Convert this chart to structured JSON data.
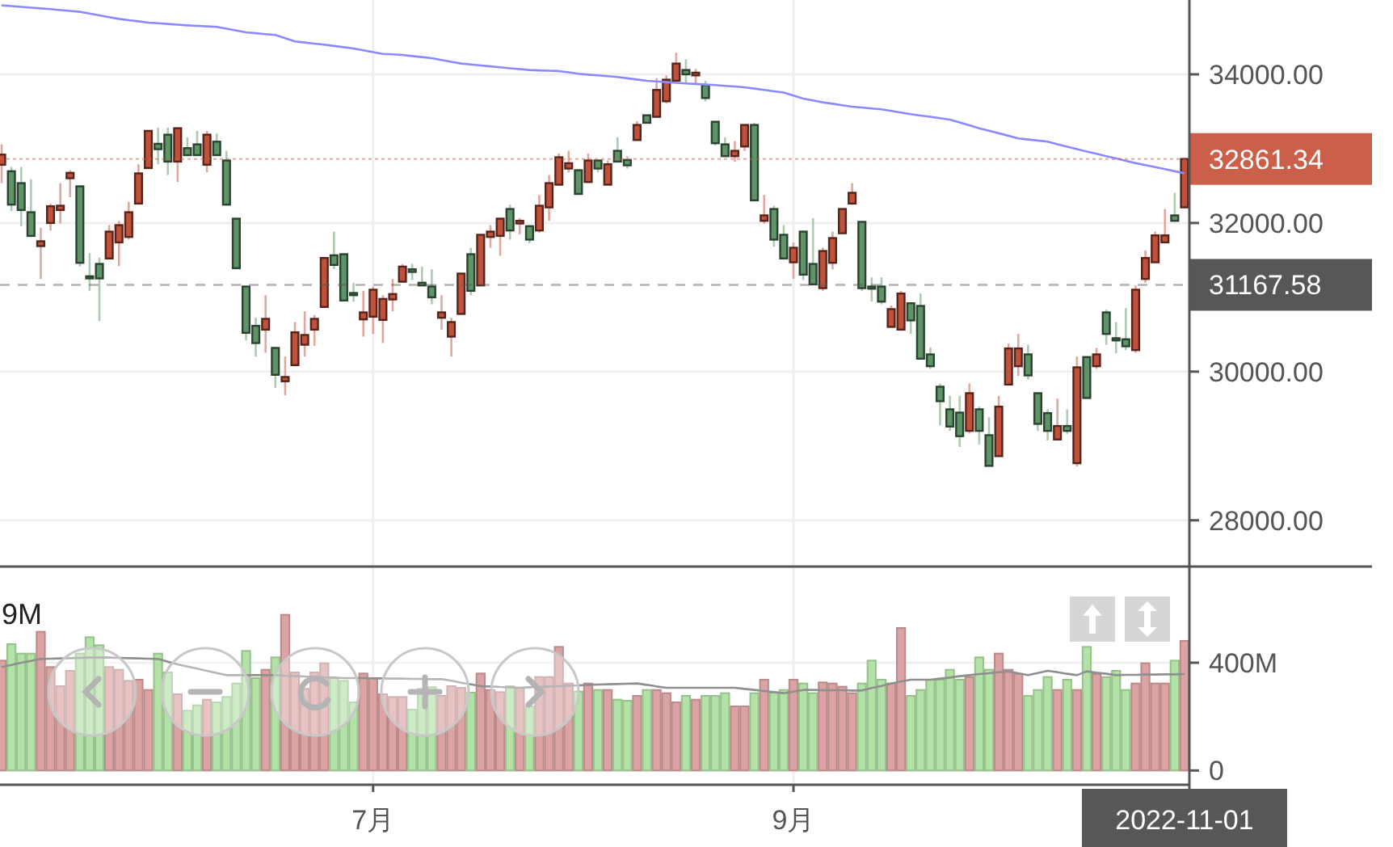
{
  "chart_data": [
    {
      "type": "candlestick",
      "tick_labels": "y",
      "grid": true,
      "categories": [
        null,
        null,
        null,
        null,
        null,
        null,
        null,
        null,
        null,
        null,
        null,
        null,
        null,
        null,
        null,
        null,
        null,
        null,
        null,
        null,
        null,
        null,
        null,
        null,
        null,
        null,
        null,
        null,
        null,
        null,
        null,
        null,
        null,
        null,
        null,
        null,
        null,
        null,
        null,
        null,
        null,
        null,
        null,
        null,
        null,
        null,
        null,
        null,
        null,
        null,
        null,
        null,
        null,
        null,
        null,
        null,
        null,
        null,
        null,
        null,
        null,
        null,
        null,
        null,
        null,
        null,
        null,
        null,
        null,
        null,
        null,
        null,
        null,
        null,
        null,
        null,
        null,
        null,
        null,
        null,
        null,
        null,
        null,
        null,
        null,
        null,
        null,
        null,
        null,
        null,
        null,
        null,
        null,
        null,
        null,
        null,
        null,
        null,
        null,
        null,
        null,
        null,
        null,
        null,
        null,
        null,
        null,
        null,
        null,
        null,
        null,
        null,
        null,
        null,
        null,
        null,
        null,
        null,
        null,
        null,
        null,
        null
      ],
      "ohlc": [
        [
          32783,
          33058,
          32536,
          32920
        ],
        [
          32696,
          32754,
          32160,
          32247
        ],
        [
          32536,
          32754,
          31957,
          32174
        ],
        [
          32145,
          32587,
          31812,
          31826
        ],
        [
          31689,
          31935,
          31247,
          31754
        ],
        [
          32000,
          32261,
          31899,
          32225
        ],
        [
          32174,
          32536,
          31993,
          32232
        ],
        [
          32602,
          32710,
          32348,
          32674
        ],
        [
          32493,
          32493,
          31413,
          31464
        ],
        [
          31283,
          31594,
          31087,
          31254
        ],
        [
          31449,
          31536,
          30681,
          31254
        ],
        [
          31522,
          31971,
          31522,
          31884
        ],
        [
          31739,
          32029,
          31420,
          31971
        ],
        [
          31812,
          32283,
          31776,
          32145
        ],
        [
          32261,
          32790,
          32247,
          32667
        ],
        [
          32739,
          33239,
          32739,
          33239
        ],
        [
          33065,
          33283,
          32790,
          32993
        ],
        [
          33188,
          33283,
          32645,
          32826
        ],
        [
          32826,
          33275,
          32551,
          33275
        ],
        [
          33007,
          33152,
          32899,
          32913
        ],
        [
          33058,
          33239,
          32899,
          32913
        ],
        [
          32783,
          33239,
          32681,
          33188
        ],
        [
          33094,
          33203,
          32899,
          32913
        ],
        [
          32841,
          32971,
          32247,
          32247
        ],
        [
          32058,
          32058,
          31391,
          31391
        ],
        [
          31145,
          31145,
          30420,
          30522
        ],
        [
          30616,
          30725,
          30203,
          30384
        ],
        [
          30565,
          31029,
          30254,
          30710
        ],
        [
          30319,
          30319,
          29783,
          29957
        ],
        [
          29870,
          30203,
          29681,
          29928
        ],
        [
          30087,
          30667,
          30073,
          30529
        ],
        [
          30362,
          30812,
          30203,
          30493
        ],
        [
          30565,
          30761,
          30348,
          30710
        ],
        [
          30870,
          31529,
          30870,
          31529
        ],
        [
          31565,
          31884,
          31377,
          31435
        ],
        [
          31580,
          31580,
          30957,
          30957
        ],
        [
          31058,
          31196,
          30942,
          31029
        ],
        [
          30703,
          31087,
          30471,
          30797
        ],
        [
          30739,
          31145,
          30507,
          31102
        ],
        [
          30696,
          31029,
          30384,
          30978
        ],
        [
          30971,
          31247,
          30812,
          31044
        ],
        [
          31210,
          31449,
          31196,
          31413
        ],
        [
          31377,
          31449,
          31232,
          31341
        ],
        [
          31196,
          31413,
          31160,
          31160
        ],
        [
          31145,
          31377,
          30906,
          31000
        ],
        [
          30725,
          31029,
          30565,
          30797
        ],
        [
          30471,
          30725,
          30203,
          30667
        ],
        [
          30776,
          31319,
          30776,
          31319
        ],
        [
          31580,
          31667,
          31029,
          31087
        ],
        [
          31160,
          31841,
          31160,
          31841
        ],
        [
          31812,
          31971,
          31667,
          31884
        ],
        [
          31826,
          32065,
          31558,
          32058
        ],
        [
          32188,
          32247,
          31776,
          31899
        ],
        [
          31993,
          32065,
          31848,
          32029
        ],
        [
          31957,
          31971,
          31725,
          31776
        ],
        [
          31899,
          32377,
          31870,
          32232
        ],
        [
          32210,
          32645,
          32029,
          32536
        ],
        [
          32515,
          32935,
          32515,
          32884
        ],
        [
          32732,
          32971,
          32681,
          32804
        ],
        [
          32710,
          32710,
          32377,
          32391
        ],
        [
          32551,
          32935,
          32551,
          32841
        ],
        [
          32841,
          32841,
          32681,
          32732
        ],
        [
          32515,
          32841,
          32515,
          32790
        ],
        [
          32971,
          33152,
          32826,
          32826
        ],
        [
          32848,
          32899,
          32732,
          32776
        ],
        [
          33116,
          33370,
          33116,
          33319
        ],
        [
          33449,
          33449,
          33348,
          33348
        ],
        [
          33428,
          33949,
          33428,
          33790
        ],
        [
          33638,
          33986,
          33609,
          33928
        ],
        [
          33913,
          34290,
          33913,
          34145
        ],
        [
          34058,
          34203,
          33877,
          34000
        ],
        [
          33986,
          34073,
          33877,
          34022
        ],
        [
          33855,
          33913,
          33638,
          33681
        ],
        [
          33362,
          33362,
          33044,
          33073
        ],
        [
          33058,
          33152,
          32899,
          32899
        ],
        [
          32899,
          33101,
          32826,
          32971
        ],
        [
          33029,
          33319,
          32971,
          33319
        ],
        [
          33319,
          33348,
          32304,
          32304
        ],
        [
          32029,
          32377,
          31993,
          32102
        ],
        [
          32188,
          32232,
          31681,
          31776
        ],
        [
          31841,
          31971,
          31522,
          31522
        ],
        [
          31471,
          31739,
          31247,
          31667
        ],
        [
          31884,
          31884,
          31232,
          31305
        ],
        [
          31449,
          32065,
          31174,
          31174
        ],
        [
          31123,
          31667,
          31087,
          31623
        ],
        [
          31464,
          31884,
          31377,
          31797
        ],
        [
          31862,
          32188,
          31862,
          32188
        ],
        [
          32261,
          32536,
          32247,
          32406
        ],
        [
          32015,
          32015,
          31087,
          31123
        ],
        [
          31145,
          31268,
          30942,
          31116
        ],
        [
          31145,
          31268,
          30906,
          30942
        ],
        [
          30602,
          30891,
          30602,
          30841
        ],
        [
          30565,
          31087,
          30565,
          31051
        ],
        [
          30920,
          30920,
          30507,
          30689
        ],
        [
          30884,
          31051,
          30174,
          30174
        ],
        [
          30232,
          30326,
          30036,
          30073
        ],
        [
          29797,
          29841,
          29276,
          29602
        ],
        [
          29493,
          29674,
          29203,
          29261
        ],
        [
          29449,
          29674,
          28986,
          29131
        ],
        [
          29203,
          29841,
          29167,
          29710
        ],
        [
          29493,
          29529,
          29022,
          29203
        ],
        [
          29145,
          29384,
          28732,
          28732
        ],
        [
          28863,
          29674,
          28863,
          29529
        ],
        [
          29826,
          30377,
          29826,
          30312
        ],
        [
          30073,
          30507,
          29942,
          30312
        ],
        [
          30232,
          30362,
          29892,
          29949
        ],
        [
          29710,
          29710,
          29203,
          29297
        ],
        [
          29442,
          29493,
          29073,
          29203
        ],
        [
          29087,
          29638,
          29087,
          29268
        ],
        [
          29268,
          29493,
          29160,
          29203
        ],
        [
          28768,
          30203,
          28725,
          30058
        ],
        [
          30196,
          30196,
          29645,
          29645
        ],
        [
          30073,
          30319,
          30036,
          30232
        ],
        [
          30797,
          30834,
          30362,
          30507
        ],
        [
          30450,
          30667,
          30247,
          30420
        ],
        [
          30435,
          30855,
          30290,
          30341
        ],
        [
          30290,
          31160,
          30254,
          31102
        ],
        [
          31247,
          31631,
          31196,
          31529
        ],
        [
          31471,
          31884,
          31471,
          31833
        ],
        [
          31739,
          32188,
          31739,
          31833
        ],
        [
          32102,
          32406,
          32029,
          32029
        ],
        [
          32210,
          32877,
          32210,
          32861.34
        ]
      ],
      "colors": [
        "#c0513b",
        "#5e9467",
        "#5e9467",
        "#5e9467",
        "#c0513b",
        "#c0513b",
        "#c0513b",
        "#c0513b",
        "#5e9467",
        "#5e9467",
        "#5e9467",
        "#c0513b",
        "#c0513b",
        "#c0513b",
        "#c0513b",
        "#c0513b",
        "#5e9467",
        "#5e9467",
        "#c0513b",
        "#5e9467",
        "#5e9467",
        "#c0513b",
        "#5e9467",
        "#5e9467",
        "#5e9467",
        "#5e9467",
        "#5e9467",
        "#c0513b",
        "#5e9467",
        "#c0513b",
        "#c0513b",
        "#c0513b",
        "#c0513b",
        "#c0513b",
        "#5e9467",
        "#5e9467",
        "#5e9467",
        "#c0513b",
        "#c0513b",
        "#c0513b",
        "#c0513b",
        "#c0513b",
        "#5e9467",
        "#5e9467",
        "#5e9467",
        "#c0513b",
        "#c0513b",
        "#c0513b",
        "#5e9467",
        "#c0513b",
        "#c0513b",
        "#c0513b",
        "#5e9467",
        "#c0513b",
        "#5e9467",
        "#c0513b",
        "#c0513b",
        "#c0513b",
        "#c0513b",
        "#5e9467",
        "#c0513b",
        "#5e9467",
        "#c0513b",
        "#5e9467",
        "#5e9467",
        "#c0513b",
        "#5e9467",
        "#c0513b",
        "#c0513b",
        "#c0513b",
        "#5e9467",
        "#c0513b",
        "#5e9467",
        "#5e9467",
        "#5e9467",
        "#c0513b",
        "#c0513b",
        "#5e9467",
        "#c0513b",
        "#5e9467",
        "#5e9467",
        "#c0513b",
        "#5e9467",
        "#5e9467",
        "#c0513b",
        "#c0513b",
        "#c0513b",
        "#c0513b",
        "#5e9467",
        "#5e9467",
        "#5e9467",
        "#c0513b",
        "#c0513b",
        "#5e9467",
        "#5e9467",
        "#5e9467",
        "#5e9467",
        "#5e9467",
        "#5e9467",
        "#c0513b",
        "#5e9467",
        "#5e9467",
        "#c0513b",
        "#c0513b",
        "#c0513b",
        "#5e9467",
        "#5e9467",
        "#5e9467",
        "#c0513b",
        "#5e9467",
        "#c0513b",
        "#5e9467",
        "#c0513b",
        "#5e9467",
        "#5e9467",
        "#5e9467",
        "#c0513b",
        "#c0513b",
        "#c0513b",
        "#c0513b",
        "#5e9467",
        "#c0513b"
      ],
      "series": [
        {
          "type": "line",
          "color": "#8a8aff",
          "values": [
            34928,
            34918,
            34908,
            34897,
            34887,
            34877,
            34865,
            34853,
            34841,
            34817,
            34794,
            34770,
            34746,
            34729,
            34713,
            34696,
            34687,
            34678,
            34668,
            34659,
            34652,
            34645,
            34638,
            34614,
            34589,
            34565,
            34553,
            34541,
            34529,
            34486,
            34442,
            34428,
            34413,
            34399,
            34382,
            34365,
            34348,
            34324,
            34299,
            34275,
            34268,
            34261,
            34246,
            34232,
            34217,
            34193,
            34169,
            34145,
            34132,
            34120,
            34107,
            34094,
            34082,
            34070,
            34058,
            34053,
            34049,
            34044,
            34026,
            34007,
            33996,
            33986,
            33975,
            33964,
            33947,
            33930,
            33913,
            33904,
            33895,
            33886,
            33877,
            33870,
            33862,
            33855,
            33845,
            33836,
            33826,
            33808,
            33790,
            33772,
            33754,
            33714,
            33674,
            33649,
            33623,
            33604,
            33584,
            33565,
            33553,
            33541,
            33529,
            33507,
            33486,
            33464,
            33446,
            33428,
            33409,
            33391,
            33352,
            33314,
            33275,
            33241,
            33207,
            33172,
            33138,
            33123,
            33109,
            33094,
            33060,
            33027,
            32993,
            32962,
            32930,
            32899,
            32868,
            32836,
            32805,
            32778,
            32752,
            32725,
            32696,
            32667
          ]
        }
      ],
      "ylim": [
        27410,
        35000
      ],
      "yticks": [
        {
          "value": 28000,
          "label": "28000.00"
        },
        {
          "value": 30000,
          "label": "30000.00"
        },
        {
          "value": 32000,
          "label": "32000.00"
        },
        {
          "value": 34000,
          "label": "34000.00"
        }
      ],
      "ref_lines": [
        {
          "axis": "y",
          "value": 32861.34,
          "label": "32861.34",
          "color": "#cc5f4a",
          "line_style": "dotted"
        },
        {
          "axis": "y",
          "value": 31167.58,
          "label": "31167.58",
          "color": "#575757",
          "line_style": "dashed"
        }
      ]
    },
    {
      "type": "bar",
      "grid": true,
      "categories": [
        null,
        null,
        null,
        null,
        null,
        null,
        null,
        null,
        null,
        null,
        null,
        null,
        null,
        null,
        null,
        null,
        null,
        null,
        null,
        null,
        null,
        null,
        null,
        null,
        null,
        null,
        null,
        null,
        null,
        null,
        null,
        null,
        null,
        null,
        null,
        null,
        null,
        null,
        "7月",
        null,
        null,
        null,
        null,
        null,
        null,
        null,
        null,
        null,
        null,
        null,
        null,
        null,
        null,
        null,
        null,
        null,
        null,
        null,
        null,
        null,
        null,
        null,
        null,
        null,
        null,
        null,
        null,
        null,
        null,
        null,
        null,
        null,
        null,
        null,
        null,
        null,
        null,
        null,
        null,
        null,
        null,
        "9月",
        null,
        null,
        null,
        null,
        null,
        null,
        null,
        null,
        null,
        null,
        null,
        null,
        null,
        null,
        null,
        null,
        null,
        null,
        null,
        null,
        null,
        null,
        null,
        null,
        null,
        null,
        null,
        null,
        null,
        null,
        null,
        null,
        null,
        null,
        null,
        null,
        null,
        null,
        null,
        "2022-11-01"
      ],
      "values": [
        408,
        469,
        434,
        434,
        515,
        384,
        313,
        370,
        434,
        495,
        465,
        384,
        374,
        333,
        337,
        299,
        434,
        364,
        283,
        222,
        242,
        263,
        253,
        273,
        323,
        444,
        343,
        374,
        420,
        578,
        364,
        303,
        364,
        398,
        343,
        333,
        253,
        360,
        343,
        283,
        273,
        273,
        226,
        303,
        309,
        277,
        313,
        307,
        289,
        360,
        299,
        291,
        313,
        307,
        238,
        347,
        347,
        459,
        323,
        293,
        323,
        299,
        299,
        263,
        259,
        277,
        299,
        299,
        287,
        253,
        277,
        263,
        277,
        277,
        287,
        238,
        238,
        287,
        337,
        289,
        299,
        337,
        323,
        287,
        327,
        323,
        311,
        287,
        323,
        408,
        337,
        323,
        529,
        277,
        299,
        337,
        337,
        374,
        337,
        347,
        420,
        374,
        434,
        374,
        358,
        277,
        299,
        347,
        299,
        337,
        299,
        459,
        358,
        347,
        370,
        299,
        323,
        398,
        323,
        323,
        408,
        481
      ],
      "colors": [
        "#dba3a3",
        "#b2e2a6",
        "#b2e2a6",
        "#b2e2a6",
        "#dba3a3",
        "#dba3a3",
        "#dba3a3",
        "#dba3a3",
        "#b2e2a6",
        "#b2e2a6",
        "#b2e2a6",
        "#dba3a3",
        "#dba3a3",
        "#dba3a3",
        "#dba3a3",
        "#dba3a3",
        "#b2e2a6",
        "#b2e2a6",
        "#dba3a3",
        "#b2e2a6",
        "#b2e2a6",
        "#dba3a3",
        "#b2e2a6",
        "#b2e2a6",
        "#b2e2a6",
        "#b2e2a6",
        "#b2e2a6",
        "#dba3a3",
        "#b2e2a6",
        "#dba3a3",
        "#dba3a3",
        "#dba3a3",
        "#dba3a3",
        "#dba3a3",
        "#b2e2a6",
        "#b2e2a6",
        "#b2e2a6",
        "#dba3a3",
        "#dba3a3",
        "#dba3a3",
        "#dba3a3",
        "#dba3a3",
        "#b2e2a6",
        "#b2e2a6",
        "#b2e2a6",
        "#dba3a3",
        "#dba3a3",
        "#dba3a3",
        "#b2e2a6",
        "#dba3a3",
        "#dba3a3",
        "#dba3a3",
        "#b2e2a6",
        "#dba3a3",
        "#b2e2a6",
        "#dba3a3",
        "#dba3a3",
        "#dba3a3",
        "#dba3a3",
        "#b2e2a6",
        "#dba3a3",
        "#b2e2a6",
        "#dba3a3",
        "#b2e2a6",
        "#b2e2a6",
        "#dba3a3",
        "#b2e2a6",
        "#dba3a3",
        "#dba3a3",
        "#dba3a3",
        "#b2e2a6",
        "#dba3a3",
        "#b2e2a6",
        "#b2e2a6",
        "#b2e2a6",
        "#dba3a3",
        "#dba3a3",
        "#b2e2a6",
        "#dba3a3",
        "#b2e2a6",
        "#b2e2a6",
        "#dba3a3",
        "#b2e2a6",
        "#b2e2a6",
        "#dba3a3",
        "#dba3a3",
        "#dba3a3",
        "#dba3a3",
        "#b2e2a6",
        "#b2e2a6",
        "#b2e2a6",
        "#dba3a3",
        "#dba3a3",
        "#b2e2a6",
        "#b2e2a6",
        "#b2e2a6",
        "#b2e2a6",
        "#b2e2a6",
        "#b2e2a6",
        "#dba3a3",
        "#b2e2a6",
        "#b2e2a6",
        "#dba3a3",
        "#dba3a3",
        "#dba3a3",
        "#b2e2a6",
        "#b2e2a6",
        "#b2e2a6",
        "#dba3a3",
        "#b2e2a6",
        "#dba3a3",
        "#b2e2a6",
        "#dba3a3",
        "#b2e2a6",
        "#b2e2a6",
        "#b2e2a6",
        "#dba3a3",
        "#dba3a3",
        "#dba3a3",
        "#dba3a3",
        "#b2e2a6",
        "#dba3a3"
      ],
      "series": [
        {
          "type": "line",
          "color": "#8f8f8f",
          "values": [
            384,
            392,
            400,
            407,
            414,
            415,
            416,
            417,
            418,
            419,
            420,
            419,
            418,
            417,
            416,
            415,
            414,
            404,
            394,
            386,
            378,
            370,
            362,
            354,
            354,
            354,
            354,
            354,
            354,
            352,
            351,
            349,
            348,
            346,
            345,
            343,
            343,
            343,
            342,
            342,
            341,
            341,
            340,
            340,
            339,
            339,
            333,
            326,
            320,
            313,
            312,
            310,
            309,
            307,
            309,
            310,
            312,
            313,
            315,
            316,
            318,
            319,
            320,
            321,
            322,
            323,
            318,
            312,
            307,
            307,
            307,
            307,
            307,
            307,
            307,
            307,
            303,
            299,
            295,
            291,
            287,
            293,
            299,
            299,
            298,
            298,
            298,
            297,
            297,
            306,
            314,
            323,
            330,
            337,
            337,
            337,
            341,
            345,
            350,
            354,
            358,
            361,
            365,
            368,
            361,
            354,
            362,
            370,
            365,
            359,
            354,
            368,
            363,
            359,
            354,
            355,
            355,
            356,
            356,
            357,
            357,
            358
          ]
        }
      ],
      "ylim": [
        -50,
        748
      ],
      "yticks": [
        0,
        {
          "value": 400,
          "label": "400M"
        }
      ],
      "annotations": [
        "9M"
      ]
    }
  ]
}
